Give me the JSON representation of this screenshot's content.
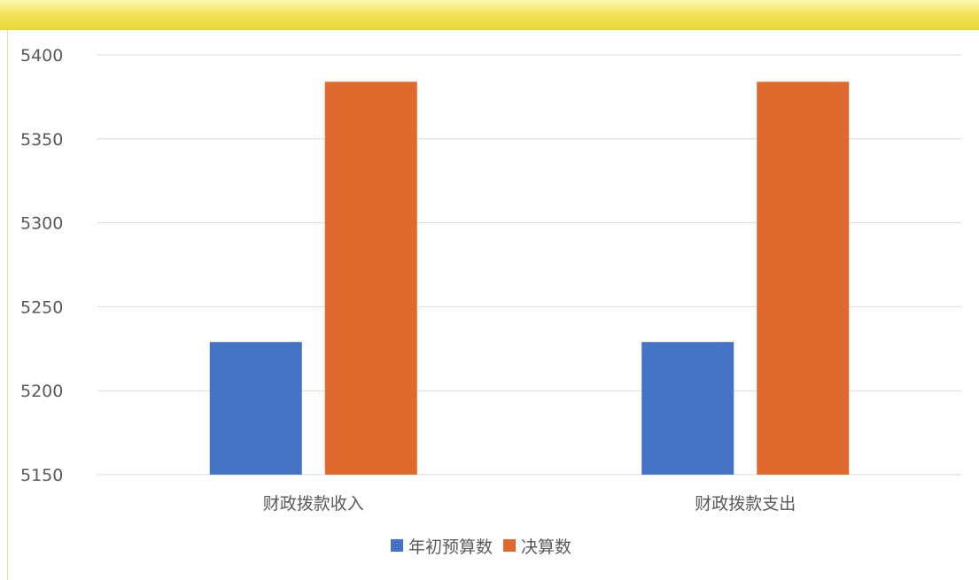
{
  "chart_data": {
    "type": "bar",
    "categories": [
      "财政拨款收入",
      "财政拨款支出"
    ],
    "series": [
      {
        "name": "年初预算数",
        "color": "#4472c4",
        "values": [
          5229,
          5229
        ]
      },
      {
        "name": "决算数",
        "color": "#e06a2e",
        "values": [
          5384,
          5384
        ]
      }
    ],
    "ylim": [
      5150,
      5400
    ],
    "yticks": [
      5150,
      5200,
      5250,
      5300,
      5350,
      5400
    ],
    "grid": true,
    "legend_position": "bottom"
  }
}
